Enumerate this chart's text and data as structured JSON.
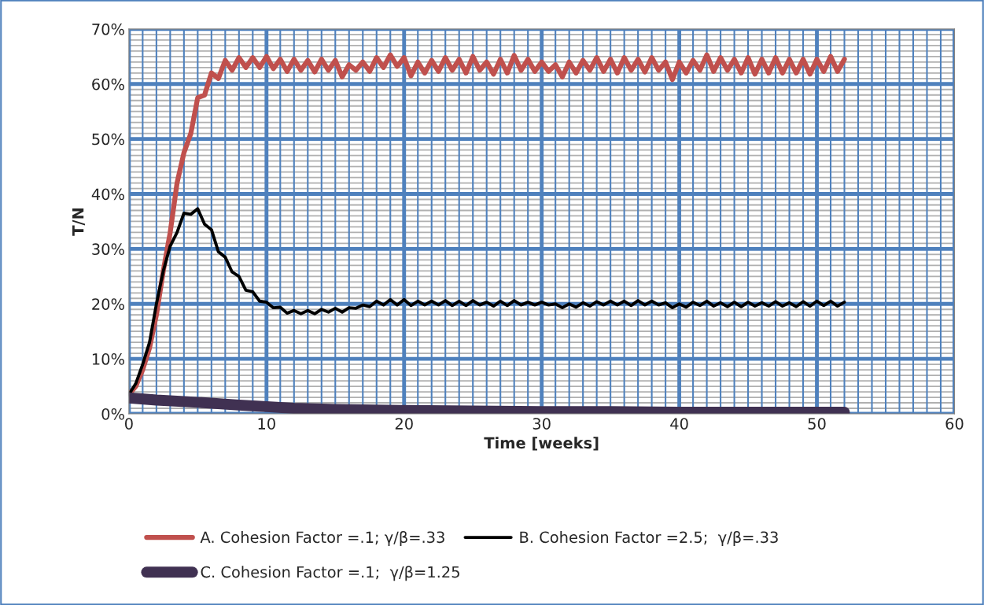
{
  "chart_data": {
    "type": "line",
    "xlabel": "Time [weeks]",
    "ylabel": "T/N",
    "x": [
      0,
      0.5,
      1,
      1.5,
      2,
      2.5,
      3,
      3.5,
      4,
      4.5,
      5,
      5.5,
      6,
      6.5,
      7,
      7.5,
      8,
      8.5,
      9,
      9.5,
      10,
      10.5,
      11,
      11.5,
      12,
      12.5,
      13,
      13.5,
      14,
      14.5,
      15,
      15.5,
      16,
      16.5,
      17,
      17.5,
      18,
      18.5,
      19,
      19.5,
      20,
      20.5,
      21,
      21.5,
      22,
      22.5,
      23,
      23.5,
      24,
      24.5,
      25,
      25.5,
      26,
      26.5,
      27,
      27.5,
      28,
      28.5,
      29,
      29.5,
      30,
      30.5,
      31,
      31.5,
      32,
      32.5,
      33,
      33.5,
      34,
      34.5,
      35,
      35.5,
      36,
      36.5,
      37,
      37.5,
      38,
      38.5,
      39,
      39.5,
      40,
      40.5,
      41,
      41.5,
      42,
      42.5,
      43,
      43.5,
      44,
      44.5,
      45,
      45.5,
      46,
      46.5,
      47,
      47.5,
      48,
      48.5,
      49,
      49.5,
      50,
      50.5,
      51,
      51.5,
      52
    ],
    "series": [
      {
        "name": "A. Cohesion Factor =.1; γ/β=.33",
        "color": "#c0504d",
        "values": [
          3.5,
          5,
          8,
          12,
          18,
          26,
          33,
          42,
          47.5,
          51,
          57.5,
          58,
          62,
          61,
          64.3,
          62.5,
          64.8,
          63,
          64.8,
          63,
          65,
          62.8,
          64.5,
          62.3,
          64.5,
          62.5,
          64.3,
          62.2,
          64.5,
          62.5,
          64.3,
          61.3,
          63.5,
          62.5,
          64,
          62.3,
          64.8,
          63,
          65.3,
          63.2,
          64.8,
          61.5,
          64,
          62,
          64.3,
          62.3,
          64.8,
          62.5,
          64.5,
          62,
          65,
          62.5,
          64,
          61.8,
          64.5,
          62,
          65.2,
          62.5,
          64.5,
          62.3,
          64,
          62.3,
          63.5,
          61.3,
          64,
          62,
          64.3,
          62.5,
          64.8,
          62.3,
          64.5,
          62,
          64.8,
          62.5,
          64.5,
          62.2,
          64.8,
          62.5,
          64,
          60.8,
          64,
          62,
          64.3,
          62.5,
          65.3,
          62.3,
          64.8,
          62.5,
          64.5,
          62,
          64.8,
          61.8,
          64.5,
          62,
          64.8,
          62,
          64.5,
          62,
          64.5,
          61.8,
          64.5,
          62.3,
          65,
          62.3,
          64.5
        ]
      },
      {
        "name": "B. Cohesion Factor =2.5;  γ/β=.33",
        "color": "#000000",
        "values": [
          3.5,
          5.5,
          9,
          13,
          20,
          26,
          30.5,
          33,
          36.5,
          36.3,
          37.3,
          34.5,
          33.5,
          29.5,
          28.5,
          25.8,
          25,
          22.5,
          22.2,
          20.5,
          20.3,
          19.3,
          19.4,
          18.3,
          18.8,
          18.2,
          18.8,
          18.2,
          19,
          18.5,
          19.2,
          18.5,
          19.3,
          19.2,
          19.8,
          19.5,
          20.5,
          19.8,
          20.8,
          19.8,
          20.8,
          19.7,
          20.5,
          19.8,
          20.5,
          19.8,
          20.6,
          19.7,
          20.5,
          19.7,
          20.6,
          19.8,
          20.3,
          19.6,
          20.5,
          19.7,
          20.6,
          19.8,
          20.3,
          19.8,
          20.3,
          19.8,
          20,
          19.3,
          20,
          19.4,
          20.2,
          19.6,
          20.4,
          19.8,
          20.5,
          19.8,
          20.5,
          19.7,
          20.6,
          19.8,
          20.5,
          19.8,
          20.2,
          19.3,
          20,
          19.4,
          20.3,
          19.7,
          20.5,
          19.6,
          20.2,
          19.5,
          20.3,
          19.5,
          20.3,
          19.6,
          20.2,
          19.6,
          20.4,
          19.6,
          20.2,
          19.5,
          20.4,
          19.6,
          20.5,
          19.7,
          20.5,
          19.6,
          20.3
        ]
      },
      {
        "name": "C. Cohesion Factor =.1;  γ/β=1.25",
        "color": "#403152",
        "x": [
          0,
          2,
          5,
          8,
          10,
          12,
          15,
          20,
          25,
          30,
          35,
          40,
          45,
          52
        ],
        "values": [
          2.9,
          2.5,
          2.1,
          1.6,
          1.3,
          1.0,
          0.8,
          0.6,
          0.5,
          0.4,
          0.4,
          0.3,
          0.3,
          0.3
        ]
      }
    ],
    "xlim": [
      0,
      60
    ],
    "xticks": [
      0,
      {
        "value": 1,
        "label": null
      },
      {
        "value": 2,
        "label": null
      },
      {
        "value": 3,
        "label": null
      },
      {
        "value": 4,
        "label": null
      },
      {
        "value": 5,
        "label": null
      },
      {
        "value": 6,
        "label": null
      },
      {
        "value": 7,
        "label": null
      },
      {
        "value": 8,
        "label": null
      },
      {
        "value": 9,
        "label": null
      },
      10,
      {
        "value": 11,
        "label": null
      },
      {
        "value": 12,
        "label": null
      },
      {
        "value": 13,
        "label": null
      },
      {
        "value": 14,
        "label": null
      },
      {
        "value": 15,
        "label": null
      },
      {
        "value": 16,
        "label": null
      },
      {
        "value": 17,
        "label": null
      },
      {
        "value": 18,
        "label": null
      },
      {
        "value": 19,
        "label": null
      },
      20,
      {
        "value": 21,
        "label": null
      },
      {
        "value": 22,
        "label": null
      },
      {
        "value": 23,
        "label": null
      },
      {
        "value": 24,
        "label": null
      },
      {
        "value": 25,
        "label": null
      },
      {
        "value": 26,
        "label": null
      },
      {
        "value": 27,
        "label": null
      },
      {
        "value": 28,
        "label": null
      },
      {
        "value": 29,
        "label": null
      },
      30,
      {
        "value": 31,
        "label": null
      },
      {
        "value": 32,
        "label": null
      },
      {
        "value": 33,
        "label": null
      },
      {
        "value": 34,
        "label": null
      },
      {
        "value": 35,
        "label": null
      },
      {
        "value": 36,
        "label": null
      },
      {
        "value": 37,
        "label": null
      },
      {
        "value": 38,
        "label": null
      },
      {
        "value": 39,
        "label": null
      },
      40,
      {
        "value": 41,
        "label": null
      },
      {
        "value": 42,
        "label": null
      },
      {
        "value": 43,
        "label": null
      },
      {
        "value": 44,
        "label": null
      },
      {
        "value": 45,
        "label": null
      },
      {
        "value": 46,
        "label": null
      },
      {
        "value": 47,
        "label": null
      },
      {
        "value": 48,
        "label": null
      },
      {
        "value": 49,
        "label": null
      },
      50,
      {
        "value": 51,
        "label": null
      },
      {
        "value": 52,
        "label": null
      },
      {
        "value": 53,
        "label": null
      },
      {
        "value": 54,
        "label": null
      },
      {
        "value": 55,
        "label": null
      },
      {
        "value": 56,
        "label": null
      },
      {
        "value": 57,
        "label": null
      },
      {
        "value": 58,
        "label": null
      },
      {
        "value": 59,
        "label": null
      },
      60
    ],
    "ylim": [
      0,
      70
    ],
    "yticks": [
      {
        "value": 0,
        "label": "0%"
      },
      {
        "value": 1,
        "label": null
      },
      {
        "value": 2,
        "label": null
      },
      {
        "value": 3,
        "label": null
      },
      {
        "value": 4,
        "label": null
      },
      {
        "value": 5,
        "label": null
      },
      {
        "value": 6,
        "label": null
      },
      {
        "value": 7,
        "label": null
      },
      {
        "value": 8,
        "label": null
      },
      {
        "value": 9,
        "label": null
      },
      {
        "value": 10,
        "label": "10%"
      },
      {
        "value": 11,
        "label": null
      },
      {
        "value": 12,
        "label": null
      },
      {
        "value": 13,
        "label": null
      },
      {
        "value": 14,
        "label": null
      },
      {
        "value": 15,
        "label": null
      },
      {
        "value": 16,
        "label": null
      },
      {
        "value": 17,
        "label": null
      },
      {
        "value": 18,
        "label": null
      },
      {
        "value": 19,
        "label": null
      },
      {
        "value": 20,
        "label": "20%"
      },
      {
        "value": 21,
        "label": null
      },
      {
        "value": 22,
        "label": null
      },
      {
        "value": 23,
        "label": null
      },
      {
        "value": 24,
        "label": null
      },
      {
        "value": 25,
        "label": null
      },
      {
        "value": 26,
        "label": null
      },
      {
        "value": 27,
        "label": null
      },
      {
        "value": 28,
        "label": null
      },
      {
        "value": 29,
        "label": null
      },
      {
        "value": 30,
        "label": "30%"
      },
      {
        "value": 31,
        "label": null
      },
      {
        "value": 32,
        "label": null
      },
      {
        "value": 33,
        "label": null
      },
      {
        "value": 34,
        "label": null
      },
      {
        "value": 35,
        "label": null
      },
      {
        "value": 36,
        "label": null
      },
      {
        "value": 37,
        "label": null
      },
      {
        "value": 38,
        "label": null
      },
      {
        "value": 39,
        "label": null
      },
      {
        "value": 40,
        "label": "40%"
      },
      {
        "value": 41,
        "label": null
      },
      {
        "value": 42,
        "label": null
      },
      {
        "value": 43,
        "label": null
      },
      {
        "value": 44,
        "label": null
      },
      {
        "value": 45,
        "label": null
      },
      {
        "value": 46,
        "label": null
      },
      {
        "value": 47,
        "label": null
      },
      {
        "value": 48,
        "label": null
      },
      {
        "value": 49,
        "label": null
      },
      {
        "value": 50,
        "label": "50%"
      },
      {
        "value": 51,
        "label": null
      },
      {
        "value": 52,
        "label": null
      },
      {
        "value": 53,
        "label": null
      },
      {
        "value": 54,
        "label": null
      },
      {
        "value": 55,
        "label": null
      },
      {
        "value": 56,
        "label": null
      },
      {
        "value": 57,
        "label": null
      },
      {
        "value": 58,
        "label": null
      },
      {
        "value": 59,
        "label": null
      },
      {
        "value": 60,
        "label": "60%"
      },
      {
        "value": 61,
        "label": null
      },
      {
        "value": 62,
        "label": null
      },
      {
        "value": 63,
        "label": null
      },
      {
        "value": 64,
        "label": null
      },
      {
        "value": 65,
        "label": null
      },
      {
        "value": 66,
        "label": null
      },
      {
        "value": 67,
        "label": null
      },
      {
        "value": 68,
        "label": null
      },
      {
        "value": 69,
        "label": null
      },
      {
        "value": 70,
        "label": "70%"
      }
    ],
    "grid": true,
    "legend": "bottom",
    "marker": "none",
    "line_style": "solid"
  }
}
